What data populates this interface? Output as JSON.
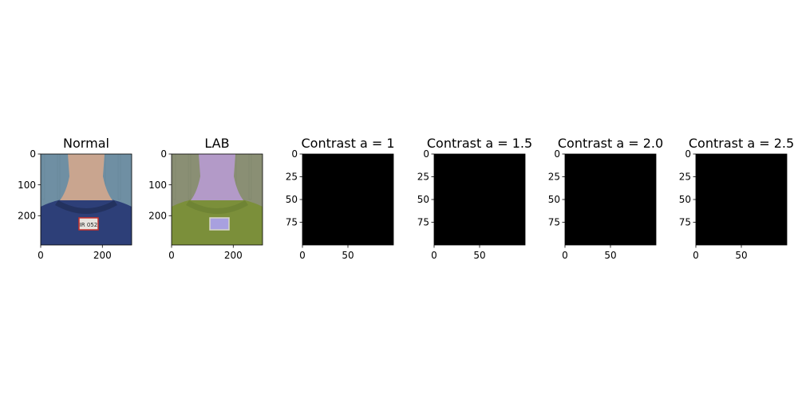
{
  "chart_data": [
    {
      "type": "image",
      "title": "Normal",
      "image": "photo-back-of-neck-with-number-tag",
      "xlim": [
        0,
        295
      ],
      "ylim": [
        295,
        0
      ],
      "xticks": [
        0,
        200
      ],
      "yticks": [
        0,
        100,
        200
      ],
      "colors": {
        "background": "#6f8fa3",
        "skin": "#c9a58f",
        "shirt": "#2d3f78",
        "collar": "#23325f",
        "tag": "#e8e4df",
        "tag_border": "#c8302a"
      },
      "tag_text": "IR 052"
    },
    {
      "type": "image",
      "title": "LAB",
      "image": "photo-in-lab-color-space",
      "xlim": [
        0,
        295
      ],
      "ylim": [
        295,
        0
      ],
      "xticks": [
        0,
        200
      ],
      "yticks": [
        0,
        100,
        200
      ],
      "colors": {
        "background": "#8a8f74",
        "skin": "#b39ac8",
        "shirt": "#7b8f3a",
        "collar": "#6f8434",
        "tag": "#a8a0df",
        "tag_border": "#d7d6c8"
      }
    },
    {
      "type": "image",
      "title": "Contrast a = 1",
      "image": "black-image",
      "xlim": [
        0,
        100
      ],
      "ylim": [
        100,
        0
      ],
      "xticks": [
        0,
        50
      ],
      "yticks": [
        0,
        25,
        50,
        75
      ],
      "colors": {
        "fill": "#000000"
      }
    },
    {
      "type": "image",
      "title": "Contrast a = 1.5",
      "image": "black-image",
      "xlim": [
        0,
        100
      ],
      "ylim": [
        100,
        0
      ],
      "xticks": [
        0,
        50
      ],
      "yticks": [
        0,
        25,
        50,
        75
      ],
      "colors": {
        "fill": "#000000"
      }
    },
    {
      "type": "image",
      "title": "Contrast a = 2.0",
      "image": "black-image",
      "xlim": [
        0,
        100
      ],
      "ylim": [
        100,
        0
      ],
      "xticks": [
        0,
        50
      ],
      "yticks": [
        0,
        25,
        50,
        75
      ],
      "colors": {
        "fill": "#000000"
      }
    },
    {
      "type": "image",
      "title": "Contrast a = 2.5",
      "image": "black-image",
      "xlim": [
        0,
        100
      ],
      "ylim": [
        100,
        0
      ],
      "xticks": [
        0,
        50
      ],
      "yticks": [
        0,
        25,
        50,
        75
      ],
      "colors": {
        "fill": "#000000"
      }
    }
  ]
}
